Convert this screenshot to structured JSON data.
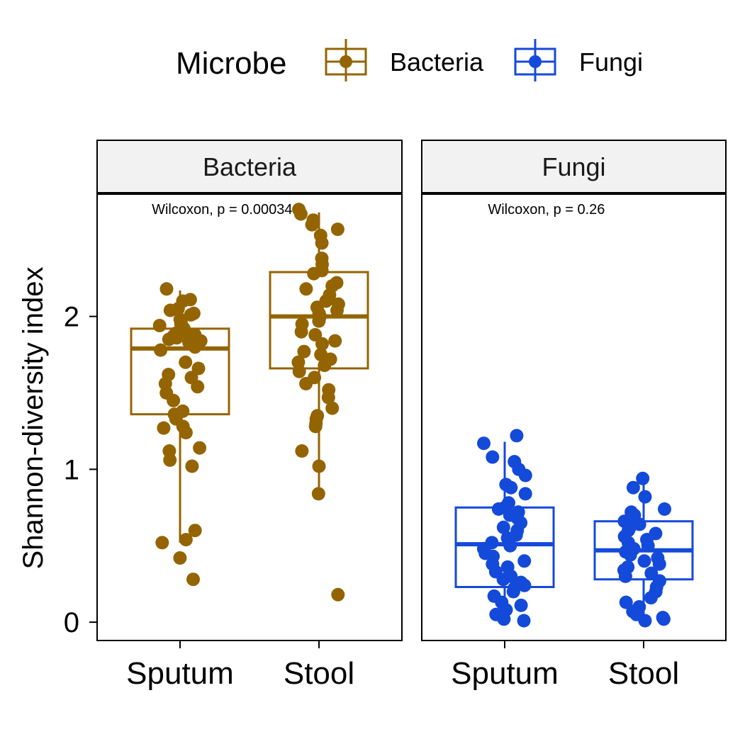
{
  "legend": {
    "title": "Microbe",
    "items": [
      {
        "label": "Bacteria",
        "color": "#946400"
      },
      {
        "label": "Fungi",
        "color": "#144ADA"
      }
    ]
  },
  "axis": {
    "ylabel": "Shannon-diversity index"
  },
  "chart_data": {
    "type": "box",
    "facet_by": "Microbe",
    "ylim": [
      -0.12,
      2.8
    ],
    "yticks": [
      0,
      1,
      2
    ],
    "grid": false,
    "legend_position": "top",
    "panels": [
      {
        "strip_label": "Bacteria",
        "test_label": "Wilcoxon, p = 0.00034",
        "color": "#946400",
        "categories": [
          "Sputum",
          "Stool"
        ],
        "boxes": [
          {
            "category": "Sputum",
            "min": 0.52,
            "q1": 1.36,
            "median": 1.79,
            "q3": 1.92,
            "max": 2.17
          },
          {
            "category": "Stool",
            "min": 0.84,
            "q1": 1.66,
            "median": 2.0,
            "q3": 2.29,
            "max": 2.68
          }
        ],
        "points": [
          {
            "category": "Sputum",
            "values": [
              2.18,
              2.11,
              2.1,
              2.05,
              2.04,
              2.02,
              2.01,
              1.98,
              1.96,
              1.95,
              1.94,
              1.92,
              1.9,
              1.89,
              1.88,
              1.87,
              1.86,
              1.85,
              1.84,
              1.83,
              1.82,
              1.8,
              1.78,
              1.7,
              1.66,
              1.62,
              1.6,
              1.56,
              1.54,
              1.5,
              1.45,
              1.38,
              1.36,
              1.33,
              1.28,
              1.27,
              1.24,
              1.14,
              1.12,
              1.06,
              1.02,
              0.6,
              0.54,
              0.52,
              0.42,
              0.28
            ]
          },
          {
            "category": "Stool",
            "values": [
              2.7,
              2.67,
              2.63,
              2.6,
              2.57,
              2.53,
              2.48,
              2.38,
              2.34,
              2.3,
              2.28,
              2.22,
              2.2,
              2.18,
              2.14,
              2.1,
              2.08,
              2.06,
              2.04,
              2.02,
              2.0,
              1.97,
              1.95,
              1.9,
              1.88,
              1.84,
              1.82,
              1.77,
              1.75,
              1.72,
              1.7,
              1.68,
              1.64,
              1.6,
              1.56,
              1.52,
              1.47,
              1.4,
              1.35,
              1.33,
              1.3,
              1.28,
              1.12,
              1.02,
              0.84,
              0.18
            ]
          }
        ]
      },
      {
        "strip_label": "Fungi",
        "test_label": "Wilcoxon, p = 0.26",
        "color": "#144ADA",
        "categories": [
          "Sputum",
          "Stool"
        ],
        "boxes": [
          {
            "category": "Sputum",
            "min": 0.01,
            "q1": 0.23,
            "median": 0.51,
            "q3": 0.75,
            "max": 1.18
          },
          {
            "category": "Stool",
            "min": 0.0,
            "q1": 0.28,
            "median": 0.47,
            "q3": 0.66,
            "max": 0.9
          }
        ],
        "points": [
          {
            "category": "Sputum",
            "values": [
              1.22,
              1.17,
              1.08,
              1.05,
              1.0,
              0.96,
              0.9,
              0.88,
              0.84,
              0.78,
              0.75,
              0.74,
              0.72,
              0.7,
              0.68,
              0.65,
              0.62,
              0.6,
              0.57,
              0.55,
              0.52,
              0.5,
              0.48,
              0.45,
              0.43,
              0.4,
              0.38,
              0.36,
              0.33,
              0.3,
              0.28,
              0.26,
              0.24,
              0.22,
              0.2,
              0.17,
              0.13,
              0.11,
              0.08,
              0.05,
              0.02,
              0.01
            ]
          },
          {
            "category": "Stool",
            "values": [
              0.94,
              0.88,
              0.82,
              0.74,
              0.72,
              0.7,
              0.68,
              0.66,
              0.64,
              0.62,
              0.6,
              0.58,
              0.56,
              0.54,
              0.52,
              0.5,
              0.48,
              0.46,
              0.44,
              0.42,
              0.4,
              0.38,
              0.36,
              0.34,
              0.32,
              0.3,
              0.27,
              0.23,
              0.2,
              0.16,
              0.13,
              0.1,
              0.07,
              0.05,
              0.03,
              0.02,
              0.01
            ]
          }
        ]
      }
    ]
  }
}
